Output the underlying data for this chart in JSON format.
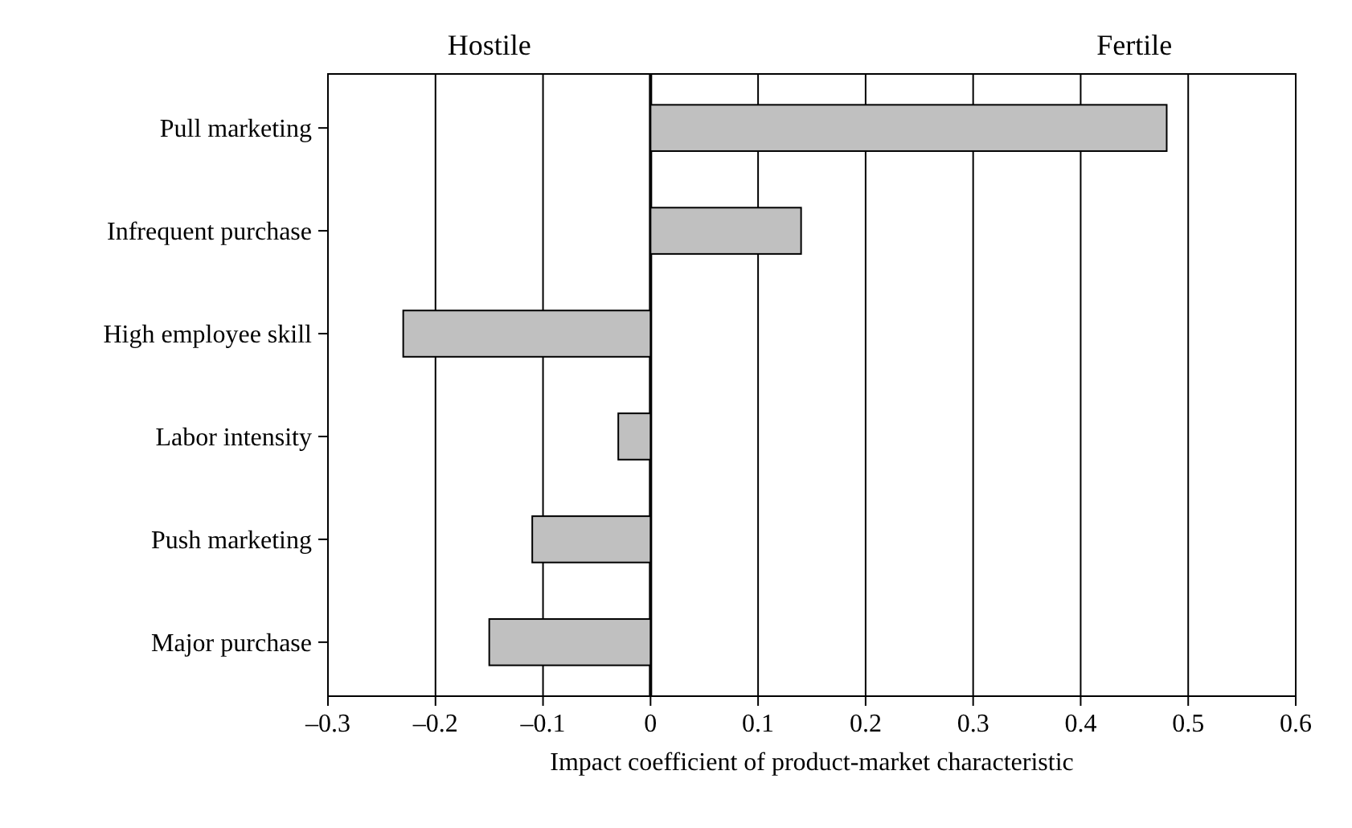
{
  "chart_data": {
    "type": "bar",
    "orientation": "horizontal",
    "xlabel": "Impact coefficient of product-market characteristic",
    "categories": [
      "Pull marketing",
      "Infrequent purchase",
      "High employee skill",
      "Labor intensity",
      "Push marketing",
      "Major purchase"
    ],
    "values": [
      0.48,
      0.14,
      -0.23,
      -0.03,
      -0.11,
      -0.15
    ],
    "color": "#c0c0c0",
    "xlim": [
      -0.3,
      0.6
    ],
    "xticks": [
      {
        "value": -0.3,
        "label": "–0.3"
      },
      {
        "value": -0.2,
        "label": "–0.2"
      },
      {
        "value": -0.1,
        "label": "–0.1"
      },
      0,
      0.1,
      0.2,
      0.3,
      0.4,
      0.5,
      0.6
    ],
    "ref_lines": [
      {
        "axis": "x",
        "value": 0,
        "label": null
      }
    ],
    "annotations": [
      "Hostile",
      "Fertile"
    ],
    "grid": "x"
  }
}
